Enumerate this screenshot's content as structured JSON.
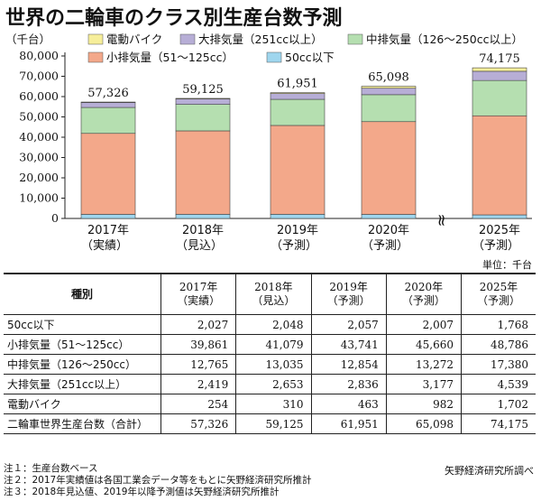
{
  "title": "世界の二輪車のクラス別生産台数予測",
  "chart_data": {
    "type": "bar",
    "stacked": true,
    "y_unit_label": "（千台）",
    "ylim": [
      0,
      80000
    ],
    "yticks": [
      "0",
      "10,000",
      "20,000",
      "30,000",
      "40,000",
      "50,000",
      "60,000",
      "70,000",
      "80,000"
    ],
    "categories": [
      {
        "line1": "2017年",
        "line2": "（実績）"
      },
      {
        "line1": "2018年",
        "line2": "（見込）"
      },
      {
        "line1": "2019年",
        "line2": "（予測）"
      },
      {
        "line1": "2020年",
        "line2": "（予測）"
      },
      {
        "line1": "2025年",
        "line2": "（予測）"
      }
    ],
    "totals": [
      "57,326",
      "59,125",
      "61,951",
      "65,098",
      "74,175"
    ],
    "series": [
      {
        "name": "50cc以下",
        "color": "#9fd6ee",
        "values": [
          2027,
          2048,
          2057,
          2007,
          1768
        ]
      },
      {
        "name": "小排気量（51～125cc）",
        "color": "#f3a88a",
        "values": [
          39861,
          41079,
          43741,
          45660,
          48786
        ]
      },
      {
        "name": "中排気量（126～250cc以上）",
        "color": "#b5dfb0",
        "values": [
          12765,
          13035,
          12854,
          13272,
          17380
        ]
      },
      {
        "name": "大排気量（251cc以上）",
        "color": "#b7aed6",
        "values": [
          2419,
          2653,
          2836,
          3177,
          4539
        ]
      },
      {
        "name": "電動バイク",
        "color": "#f6ee9a",
        "values": [
          254,
          310,
          463,
          982,
          1702
        ]
      }
    ],
    "axis_break_symbol": "≈"
  },
  "unit_note": "単位：千台",
  "table": {
    "header_label": "種別",
    "year_headers": [
      {
        "line1": "2017年",
        "line2": "（実績）"
      },
      {
        "line1": "2018年",
        "line2": "（見込）"
      },
      {
        "line1": "2019年",
        "line2": "（予測）"
      },
      {
        "line1": "2020年",
        "line2": "（予測）"
      },
      {
        "line1": "2025年",
        "line2": "（予測）"
      }
    ],
    "rows": [
      {
        "name": "50cc以下",
        "cells": [
          "2,027",
          "2,048",
          "2,057",
          "2,007",
          "1,768"
        ]
      },
      {
        "name": "小排気量（51～125cc）",
        "cells": [
          "39,861",
          "41,079",
          "43,741",
          "45,660",
          "48,786"
        ]
      },
      {
        "name": "中排気量（126～250cc）",
        "cells": [
          "12,765",
          "13,035",
          "12,854",
          "13,272",
          "17,380"
        ]
      },
      {
        "name": "大排気量（251cc以上）",
        "cells": [
          "2,419",
          "2,653",
          "2,836",
          "3,177",
          "4,539"
        ]
      },
      {
        "name": "電動バイク",
        "cells": [
          "254",
          "310",
          "463",
          "982",
          "1,702"
        ]
      },
      {
        "name": "二輪車世界生産台数（合計）",
        "cells": [
          "57,326",
          "59,125",
          "61,951",
          "65,098",
          "74,175"
        ]
      }
    ]
  },
  "notes": [
    "注１：生産台数ベース",
    "注２：2017年実績値は各国工業会データ等をもとに矢野経済研究所推計",
    "注３：2018年見込値、2019年以降予測値は矢野経済研究所推計"
  ],
  "source": "矢野経済研究所調べ"
}
